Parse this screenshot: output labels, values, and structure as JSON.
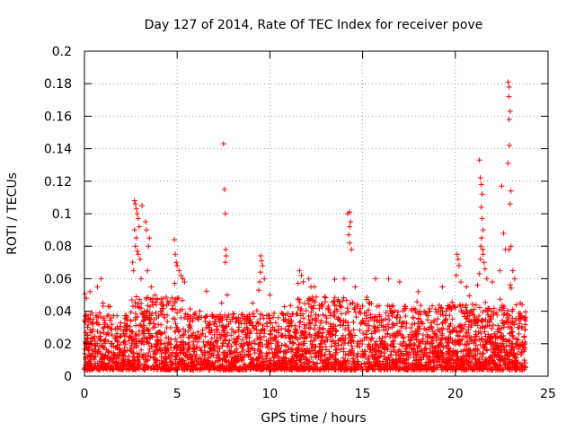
{
  "chart_data": {
    "type": "scatter",
    "title": "Day 127 of 2014, Rate Of TEC Index for receiver pove",
    "xlabel": "GPS time / hours",
    "ylabel": "ROTI / TECUs",
    "xlim": [
      0,
      25
    ],
    "ylim": [
      0,
      0.2
    ],
    "xticks": [
      0,
      5,
      10,
      15,
      20,
      25
    ],
    "xtick_labels": [
      "0",
      "5",
      "10",
      "15",
      "20",
      "25"
    ],
    "yticks": [
      0,
      0.02,
      0.04,
      0.06,
      0.08,
      0.1,
      0.12,
      0.14,
      0.16,
      0.18,
      0.2
    ],
    "ytick_labels": [
      "0",
      "0.02",
      "0.04",
      "0.06",
      "0.08",
      "0.1",
      "0.12",
      "0.14",
      "0.16",
      "0.18",
      "0.2"
    ],
    "grid": true,
    "marker": "+",
    "color": "#ff0000",
    "bulk_profile": {
      "x_range": [
        0,
        23.8
      ],
      "samples": 3600,
      "baseline_segments": [
        {
          "from": 0.0,
          "to": 2.5,
          "typical_max": 0.035
        },
        {
          "from": 2.5,
          "to": 5.5,
          "typical_max": 0.045
        },
        {
          "from": 5.5,
          "to": 11.5,
          "typical_max": 0.035
        },
        {
          "from": 11.5,
          "to": 15.5,
          "typical_max": 0.045
        },
        {
          "from": 15.5,
          "to": 23.8,
          "typical_max": 0.04
        }
      ]
    },
    "highlights": [
      {
        "x": 0.1,
        "y": 0.048
      },
      {
        "x": 0.3,
        "y": 0.052
      },
      {
        "x": 0.7,
        "y": 0.055
      },
      {
        "x": 0.9,
        "y": 0.06
      },
      {
        "x": 1.0,
        "y": 0.045
      },
      {
        "x": 2.6,
        "y": 0.07
      },
      {
        "x": 2.7,
        "y": 0.108
      },
      {
        "x": 2.75,
        "y": 0.106
      },
      {
        "x": 2.8,
        "y": 0.103
      },
      {
        "x": 2.85,
        "y": 0.1
      },
      {
        "x": 2.9,
        "y": 0.097
      },
      {
        "x": 2.95,
        "y": 0.092
      },
      {
        "x": 2.7,
        "y": 0.09
      },
      {
        "x": 2.8,
        "y": 0.085
      },
      {
        "x": 2.75,
        "y": 0.08
      },
      {
        "x": 2.85,
        "y": 0.077
      },
      {
        "x": 2.9,
        "y": 0.075
      },
      {
        "x": 3.0,
        "y": 0.072
      },
      {
        "x": 2.65,
        "y": 0.065
      },
      {
        "x": 3.05,
        "y": 0.06
      },
      {
        "x": 3.1,
        "y": 0.105
      },
      {
        "x": 3.3,
        "y": 0.095
      },
      {
        "x": 3.35,
        "y": 0.09
      },
      {
        "x": 3.5,
        "y": 0.085
      },
      {
        "x": 3.45,
        "y": 0.08
      },
      {
        "x": 3.4,
        "y": 0.065
      },
      {
        "x": 3.6,
        "y": 0.055
      },
      {
        "x": 3.8,
        "y": 0.05
      },
      {
        "x": 4.85,
        "y": 0.084
      },
      {
        "x": 4.9,
        "y": 0.075
      },
      {
        "x": 4.95,
        "y": 0.07
      },
      {
        "x": 5.0,
        "y": 0.068
      },
      {
        "x": 5.1,
        "y": 0.065
      },
      {
        "x": 5.2,
        "y": 0.062
      },
      {
        "x": 5.3,
        "y": 0.06
      },
      {
        "x": 5.4,
        "y": 0.058
      },
      {
        "x": 7.5,
        "y": 0.143
      },
      {
        "x": 7.55,
        "y": 0.115
      },
      {
        "x": 7.6,
        "y": 0.1
      },
      {
        "x": 7.62,
        "y": 0.078
      },
      {
        "x": 7.65,
        "y": 0.074
      },
      {
        "x": 7.6,
        "y": 0.07
      },
      {
        "x": 7.7,
        "y": 0.05
      },
      {
        "x": 7.4,
        "y": 0.045
      },
      {
        "x": 9.5,
        "y": 0.074
      },
      {
        "x": 9.55,
        "y": 0.071
      },
      {
        "x": 9.6,
        "y": 0.068
      },
      {
        "x": 9.5,
        "y": 0.064
      },
      {
        "x": 9.45,
        "y": 0.058
      },
      {
        "x": 9.7,
        "y": 0.06
      },
      {
        "x": 9.4,
        "y": 0.053
      },
      {
        "x": 10.0,
        "y": 0.05
      },
      {
        "x": 11.6,
        "y": 0.065
      },
      {
        "x": 11.7,
        "y": 0.062
      },
      {
        "x": 11.8,
        "y": 0.058
      },
      {
        "x": 12.1,
        "y": 0.06
      },
      {
        "x": 12.4,
        "y": 0.055
      },
      {
        "x": 14.2,
        "y": 0.1
      },
      {
        "x": 14.3,
        "y": 0.101
      },
      {
        "x": 14.35,
        "y": 0.095
      },
      {
        "x": 14.3,
        "y": 0.092
      },
      {
        "x": 14.25,
        "y": 0.087
      },
      {
        "x": 14.3,
        "y": 0.082
      },
      {
        "x": 14.4,
        "y": 0.078
      },
      {
        "x": 14.0,
        "y": 0.06
      },
      {
        "x": 14.6,
        "y": 0.055
      },
      {
        "x": 15.7,
        "y": 0.06
      },
      {
        "x": 16.4,
        "y": 0.06
      },
      {
        "x": 17.0,
        "y": 0.058
      },
      {
        "x": 18.0,
        "y": 0.052
      },
      {
        "x": 19.3,
        "y": 0.055
      },
      {
        "x": 20.1,
        "y": 0.075
      },
      {
        "x": 20.15,
        "y": 0.072
      },
      {
        "x": 20.2,
        "y": 0.068
      },
      {
        "x": 20.05,
        "y": 0.062
      },
      {
        "x": 20.3,
        "y": 0.058
      },
      {
        "x": 20.6,
        "y": 0.055
      },
      {
        "x": 21.3,
        "y": 0.133
      },
      {
        "x": 21.35,
        "y": 0.122
      },
      {
        "x": 21.4,
        "y": 0.118
      },
      {
        "x": 21.45,
        "y": 0.112
      },
      {
        "x": 21.4,
        "y": 0.104
      },
      {
        "x": 21.45,
        "y": 0.097
      },
      {
        "x": 21.5,
        "y": 0.09
      },
      {
        "x": 21.42,
        "y": 0.085
      },
      {
        "x": 21.38,
        "y": 0.08
      },
      {
        "x": 21.48,
        "y": 0.078
      },
      {
        "x": 21.5,
        "y": 0.075
      },
      {
        "x": 21.36,
        "y": 0.072
      },
      {
        "x": 21.55,
        "y": 0.07
      },
      {
        "x": 21.6,
        "y": 0.066
      },
      {
        "x": 21.3,
        "y": 0.063
      },
      {
        "x": 21.7,
        "y": 0.06
      },
      {
        "x": 22.0,
        "y": 0.058
      },
      {
        "x": 21.2,
        "y": 0.056
      },
      {
        "x": 22.5,
        "y": 0.117
      },
      {
        "x": 22.6,
        "y": 0.088
      },
      {
        "x": 22.7,
        "y": 0.078
      },
      {
        "x": 22.4,
        "y": 0.065
      },
      {
        "x": 22.85,
        "y": 0.181
      },
      {
        "x": 22.9,
        "y": 0.178
      },
      {
        "x": 22.88,
        "y": 0.172
      },
      {
        "x": 22.95,
        "y": 0.163
      },
      {
        "x": 22.9,
        "y": 0.158
      },
      {
        "x": 22.92,
        "y": 0.142
      },
      {
        "x": 22.85,
        "y": 0.131
      },
      {
        "x": 23.0,
        "y": 0.114
      },
      {
        "x": 22.95,
        "y": 0.106
      },
      {
        "x": 23.0,
        "y": 0.08
      },
      {
        "x": 22.9,
        "y": 0.078
      },
      {
        "x": 23.1,
        "y": 0.065
      },
      {
        "x": 23.2,
        "y": 0.06
      },
      {
        "x": 23.5,
        "y": 0.045
      },
      {
        "x": 23.6,
        "y": 0.044
      }
    ]
  }
}
